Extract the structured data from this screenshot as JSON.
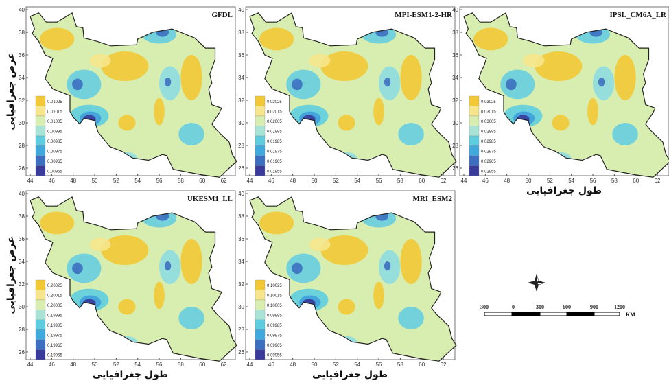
{
  "panels": [
    {
      "title": "GFDL",
      "legend": [
        "0.01025",
        "0.01015",
        "0.01005",
        "0.00995",
        "0.00985",
        "0.00975",
        "0.00965",
        "0.00955"
      ]
    },
    {
      "title": "MPI-ESM1-2-HR",
      "legend": [
        "0.02025",
        "0.02015",
        "0.02005",
        "0.01995",
        "0.01985",
        "0.01975",
        "0.01965",
        "0.01955"
      ]
    },
    {
      "title": "IPSL_CM6A_LR",
      "legend": [
        "0.03025",
        "0.03015",
        "0.03005",
        "0.02995",
        "0.02985",
        "0.02975",
        "0.02965",
        "0.02955"
      ]
    },
    {
      "title": "UKESM1_LL",
      "legend": [
        "0.20025",
        "0.20015",
        "0.20005",
        "0.19995",
        "0.19985",
        "0.19975",
        "0.19965",
        "0.19955"
      ]
    },
    {
      "title": "MRI_ESM2",
      "legend": [
        "0.10025",
        "0.10015",
        "0.10005",
        "0.09995",
        "0.09985",
        "0.09975",
        "0.09965",
        "0.09955"
      ]
    }
  ],
  "axes": {
    "x_ticks": [
      44,
      46,
      48,
      50,
      52,
      54,
      56,
      58,
      60,
      62
    ],
    "y_ticks": [
      26,
      28,
      30,
      32,
      34,
      36,
      38,
      40
    ],
    "x_label": "طول جغرافیایی",
    "y_label": "عرض جغرافیایی"
  },
  "scale_bar": {
    "labels": [
      "300",
      "0",
      "300",
      "600",
      "900",
      "1200"
    ],
    "unit": "KM"
  }
}
